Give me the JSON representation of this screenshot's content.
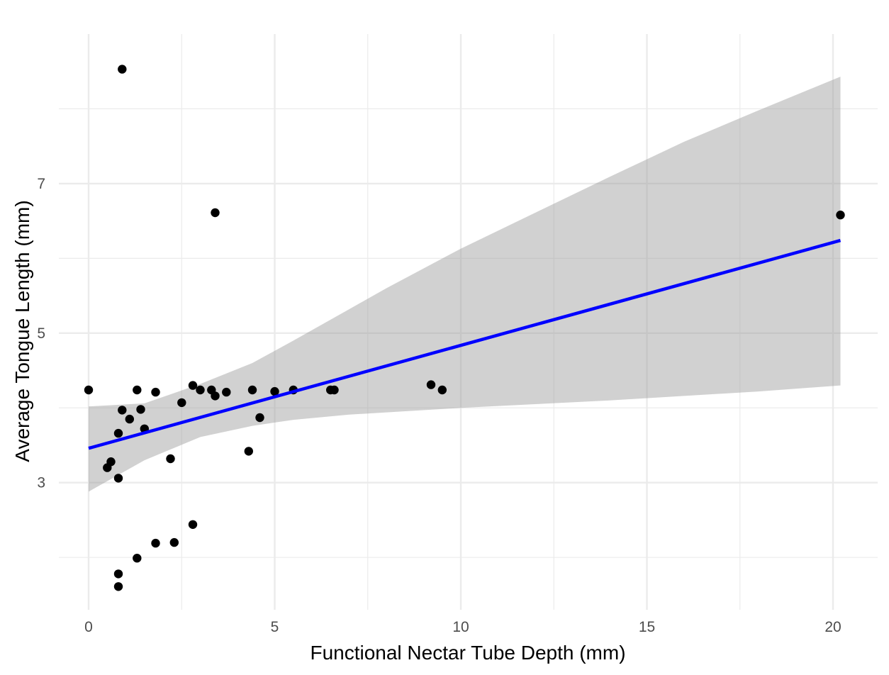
{
  "chart_data": {
    "type": "scatter",
    "title": "",
    "xlabel": "Functional Nectar Tube Depth (mm)",
    "ylabel": "Average Tongue Length (mm)",
    "xlim": [
      -0.8,
      21.2
    ],
    "ylim": [
      1.3,
      9.0
    ],
    "x_ticks": [
      0,
      5,
      10,
      15,
      20
    ],
    "x_tick_labels": [
      "0",
      "5",
      "10",
      "15",
      "20"
    ],
    "y_ticks": [
      3,
      5,
      7
    ],
    "y_tick_labels": [
      "3",
      "5",
      "7"
    ],
    "x_minor_grid": [
      2.5,
      7.5,
      12.5,
      17.5
    ],
    "y_minor_grid": [
      2,
      4,
      6,
      8
    ],
    "grid": true,
    "background": "#ffffff",
    "grid_color": "#ebebeb",
    "point_color": "#000000",
    "points": [
      {
        "x": 0.9,
        "y": 8.53
      },
      {
        "x": 3.4,
        "y": 6.61
      },
      {
        "x": 20.2,
        "y": 6.58
      },
      {
        "x": 0.0,
        "y": 4.24
      },
      {
        "x": 1.3,
        "y": 4.24
      },
      {
        "x": 1.8,
        "y": 4.21
      },
      {
        "x": 2.8,
        "y": 4.3
      },
      {
        "x": 3.0,
        "y": 4.24
      },
      {
        "x": 3.3,
        "y": 4.24
      },
      {
        "x": 3.4,
        "y": 4.16
      },
      {
        "x": 3.7,
        "y": 4.21
      },
      {
        "x": 4.4,
        "y": 4.24
      },
      {
        "x": 5.0,
        "y": 4.22
      },
      {
        "x": 5.5,
        "y": 4.24
      },
      {
        "x": 6.5,
        "y": 4.24
      },
      {
        "x": 6.6,
        "y": 4.24
      },
      {
        "x": 9.2,
        "y": 4.31
      },
      {
        "x": 9.5,
        "y": 4.24
      },
      {
        "x": 2.5,
        "y": 4.07
      },
      {
        "x": 0.9,
        "y": 3.97
      },
      {
        "x": 1.4,
        "y": 3.98
      },
      {
        "x": 1.1,
        "y": 3.85
      },
      {
        "x": 4.6,
        "y": 3.87
      },
      {
        "x": 1.5,
        "y": 3.72
      },
      {
        "x": 0.8,
        "y": 3.66
      },
      {
        "x": 4.3,
        "y": 3.42
      },
      {
        "x": 2.2,
        "y": 3.32
      },
      {
        "x": 0.6,
        "y": 3.28
      },
      {
        "x": 0.5,
        "y": 3.2
      },
      {
        "x": 0.8,
        "y": 3.06
      },
      {
        "x": 2.8,
        "y": 2.44
      },
      {
        "x": 2.3,
        "y": 2.2
      },
      {
        "x": 1.8,
        "y": 2.19
      },
      {
        "x": 1.3,
        "y": 1.99
      },
      {
        "x": 0.8,
        "y": 1.78
      },
      {
        "x": 0.8,
        "y": 1.61
      }
    ],
    "trend_line": {
      "color": "#0000ff",
      "x": [
        0.0,
        20.2
      ],
      "y": [
        3.46,
        6.24
      ]
    },
    "confidence_band": {
      "color": "#999999",
      "x": [
        0,
        1.5,
        3,
        4.4,
        5.5,
        7,
        8,
        10,
        12,
        14,
        16,
        18,
        20.2
      ],
      "lower": [
        2.88,
        3.3,
        3.61,
        3.76,
        3.84,
        3.91,
        3.94,
        4.0,
        4.05,
        4.1,
        4.16,
        4.22,
        4.3
      ],
      "upper": [
        4.02,
        4.06,
        4.32,
        4.6,
        4.9,
        5.32,
        5.6,
        6.13,
        6.61,
        7.09,
        7.56,
        7.98,
        8.43
      ]
    }
  }
}
